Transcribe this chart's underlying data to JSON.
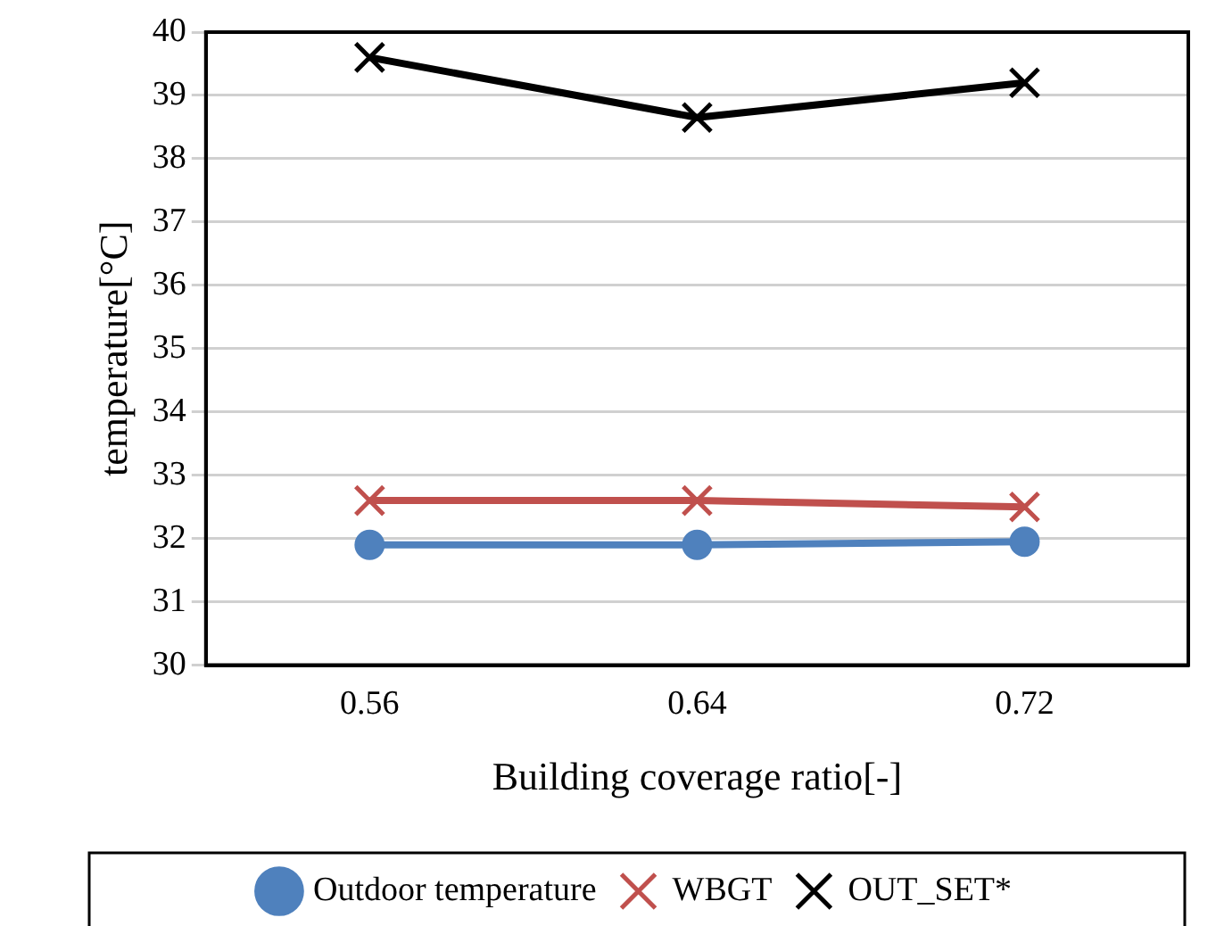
{
  "chart_data": {
    "type": "line",
    "xlabel": "Building coverage ratio[-]",
    "ylabel": "temperature[°C]",
    "categories": [
      "0.56",
      "0.64",
      "0.72"
    ],
    "series": [
      {
        "name": "Outdoor temperature",
        "color": "#4f81bd",
        "marker": "circle",
        "values": [
          31.9,
          31.9,
          31.95
        ]
      },
      {
        "name": "WBGT",
        "color": "#c0504d",
        "marker": "cross",
        "values": [
          32.6,
          32.6,
          32.5
        ]
      },
      {
        "name": "OUT_SET*",
        "color": "#000000",
        "marker": "cross",
        "values": [
          39.6,
          38.65,
          39.2
        ]
      }
    ],
    "ylim": [
      30,
      40
    ],
    "yticks": [
      30,
      31,
      32,
      33,
      34,
      35,
      36,
      37,
      38,
      39,
      40
    ],
    "grid": "y",
    "legend": "bottom"
  }
}
